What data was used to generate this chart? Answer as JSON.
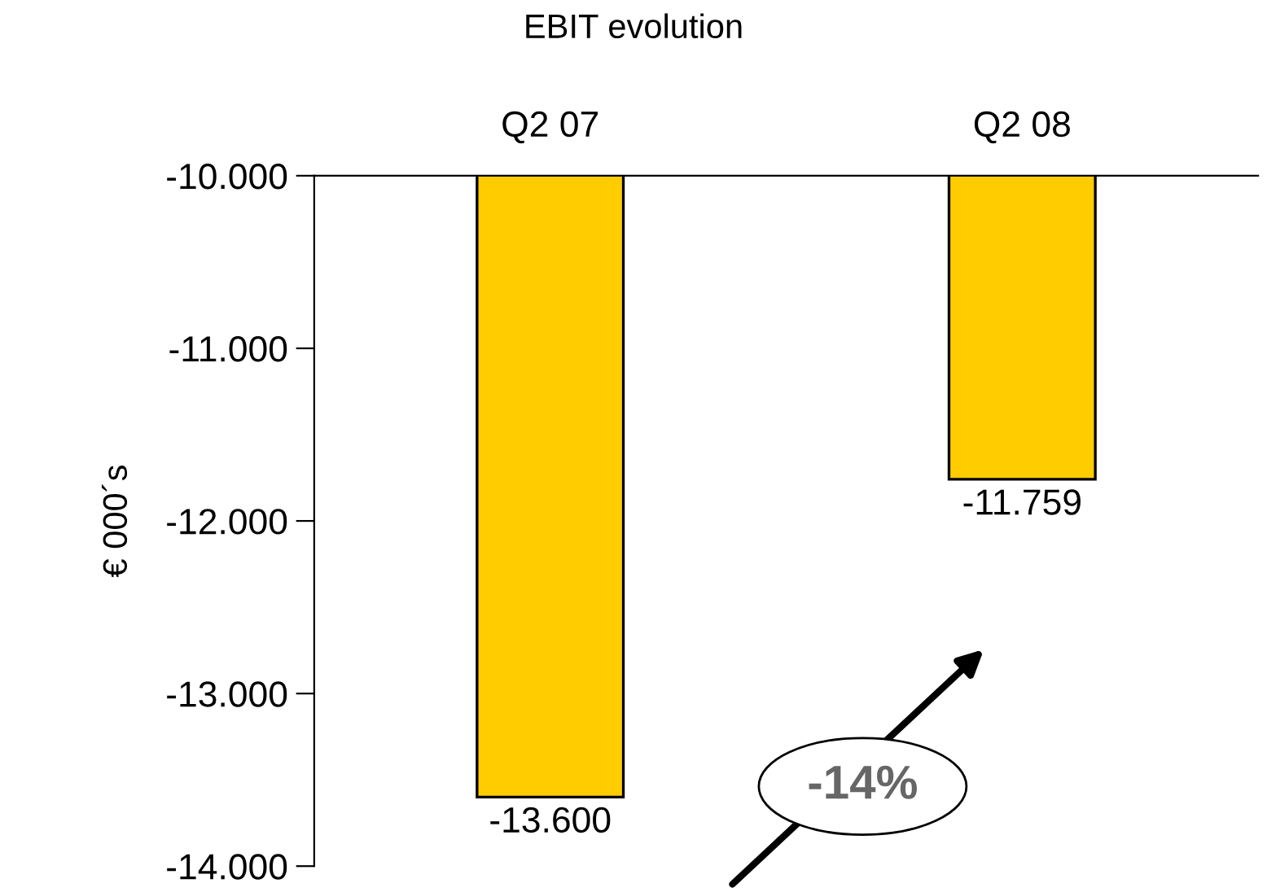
{
  "chart_data": {
    "type": "bar",
    "title": "EBIT evolution",
    "ylabel": "€ 000´s",
    "categories": [
      "Q2 07",
      "Q2 08"
    ],
    "values": [
      -13600,
      -11759
    ],
    "color": "#ffcc00",
    "value_labels": [
      "-13.600",
      "-11.759"
    ],
    "ylim": [
      -14000,
      -10000
    ],
    "yticks": [
      {
        "value": -14000,
        "label": "-14.000"
      },
      {
        "value": -13000,
        "label": "-13.000"
      },
      {
        "value": -12000,
        "label": "-12.000"
      },
      {
        "value": -11000,
        "label": "-11.000"
      },
      {
        "value": -10000,
        "label": "-10.000"
      }
    ],
    "annotations": [
      "-14%"
    ],
    "grid": false,
    "legend": false
  }
}
